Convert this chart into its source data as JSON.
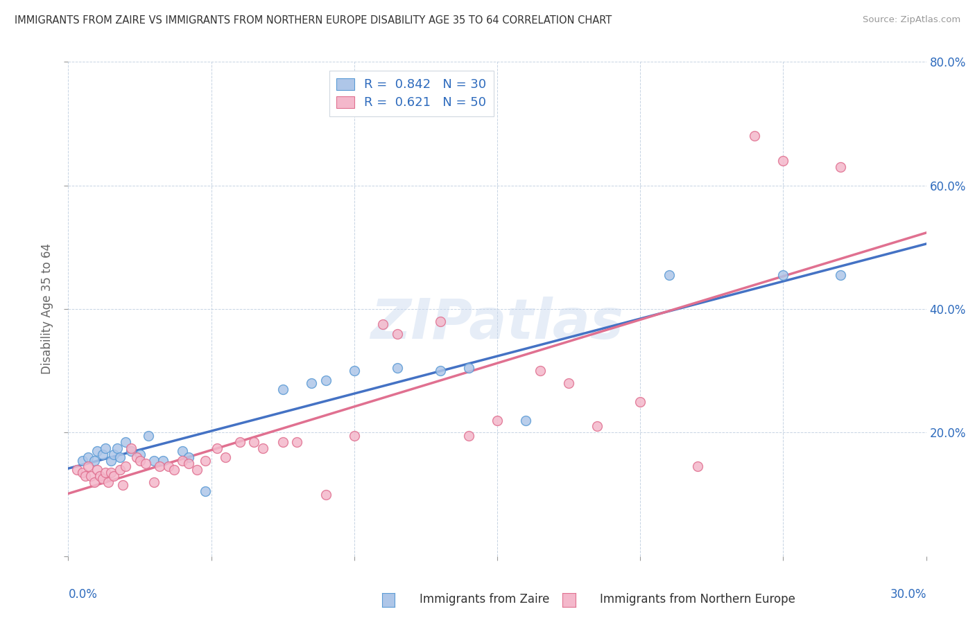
{
  "title": "IMMIGRANTS FROM ZAIRE VS IMMIGRANTS FROM NORTHERN EUROPE DISABILITY AGE 35 TO 64 CORRELATION CHART",
  "source": "Source: ZipAtlas.com",
  "ylabel": "Disability Age 35 to 64",
  "xlim": [
    0.0,
    0.3
  ],
  "ylim": [
    0.0,
    0.8
  ],
  "yticks": [
    0.0,
    0.2,
    0.4,
    0.6,
    0.8
  ],
  "ytick_labels": [
    "",
    "20.0%",
    "40.0%",
    "60.0%",
    "80.0%"
  ],
  "blue_color": "#aec6e8",
  "blue_edge_color": "#5b9bd5",
  "blue_line_color": "#4472c4",
  "pink_color": "#f4b8cb",
  "pink_edge_color": "#e07090",
  "pink_line_color": "#e07090",
  "legend_text_color": "#2e6bbd",
  "watermark": "ZIPatlas",
  "blue_R": 0.842,
  "blue_N": 30,
  "pink_R": 0.621,
  "pink_N": 50,
  "blue_scatter": [
    [
      0.005,
      0.155
    ],
    [
      0.007,
      0.16
    ],
    [
      0.009,
      0.155
    ],
    [
      0.01,
      0.17
    ],
    [
      0.012,
      0.165
    ],
    [
      0.013,
      0.175
    ],
    [
      0.015,
      0.155
    ],
    [
      0.016,
      0.165
    ],
    [
      0.017,
      0.175
    ],
    [
      0.018,
      0.16
    ],
    [
      0.02,
      0.185
    ],
    [
      0.022,
      0.17
    ],
    [
      0.025,
      0.165
    ],
    [
      0.028,
      0.195
    ],
    [
      0.03,
      0.155
    ],
    [
      0.033,
      0.155
    ],
    [
      0.04,
      0.17
    ],
    [
      0.042,
      0.16
    ],
    [
      0.048,
      0.105
    ],
    [
      0.075,
      0.27
    ],
    [
      0.085,
      0.28
    ],
    [
      0.09,
      0.285
    ],
    [
      0.1,
      0.3
    ],
    [
      0.115,
      0.305
    ],
    [
      0.13,
      0.3
    ],
    [
      0.14,
      0.305
    ],
    [
      0.16,
      0.22
    ],
    [
      0.21,
      0.455
    ],
    [
      0.25,
      0.455
    ],
    [
      0.27,
      0.455
    ]
  ],
  "pink_scatter": [
    [
      0.003,
      0.14
    ],
    [
      0.005,
      0.135
    ],
    [
      0.006,
      0.13
    ],
    [
      0.007,
      0.145
    ],
    [
      0.008,
      0.13
    ],
    [
      0.009,
      0.12
    ],
    [
      0.01,
      0.14
    ],
    [
      0.011,
      0.13
    ],
    [
      0.012,
      0.125
    ],
    [
      0.013,
      0.135
    ],
    [
      0.014,
      0.12
    ],
    [
      0.015,
      0.135
    ],
    [
      0.016,
      0.13
    ],
    [
      0.018,
      0.14
    ],
    [
      0.019,
      0.115
    ],
    [
      0.02,
      0.145
    ],
    [
      0.022,
      0.175
    ],
    [
      0.024,
      0.16
    ],
    [
      0.025,
      0.155
    ],
    [
      0.027,
      0.15
    ],
    [
      0.03,
      0.12
    ],
    [
      0.032,
      0.145
    ],
    [
      0.035,
      0.145
    ],
    [
      0.037,
      0.14
    ],
    [
      0.04,
      0.155
    ],
    [
      0.042,
      0.15
    ],
    [
      0.045,
      0.14
    ],
    [
      0.048,
      0.155
    ],
    [
      0.052,
      0.175
    ],
    [
      0.055,
      0.16
    ],
    [
      0.06,
      0.185
    ],
    [
      0.065,
      0.185
    ],
    [
      0.068,
      0.175
    ],
    [
      0.075,
      0.185
    ],
    [
      0.08,
      0.185
    ],
    [
      0.09,
      0.1
    ],
    [
      0.1,
      0.195
    ],
    [
      0.11,
      0.375
    ],
    [
      0.115,
      0.36
    ],
    [
      0.13,
      0.38
    ],
    [
      0.14,
      0.195
    ],
    [
      0.15,
      0.22
    ],
    [
      0.165,
      0.3
    ],
    [
      0.175,
      0.28
    ],
    [
      0.185,
      0.21
    ],
    [
      0.2,
      0.25
    ],
    [
      0.22,
      0.145
    ],
    [
      0.24,
      0.68
    ],
    [
      0.25,
      0.64
    ],
    [
      0.27,
      0.63
    ]
  ]
}
